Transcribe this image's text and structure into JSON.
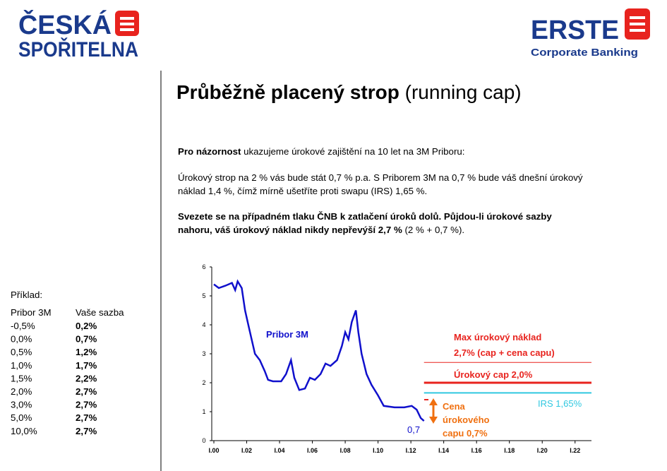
{
  "logos": {
    "left": [
      "ČESKÁ",
      "SPOŘITELNA"
    ],
    "right": {
      "name": "ERSTE",
      "subtitle": "Corporate Banking"
    }
  },
  "title": {
    "bold": "Průběžně placený strop",
    "rest": " (running cap)"
  },
  "text": {
    "p1_bold": "Pro názornost",
    "p1_rest": " ukazujeme úrokové zajištění na 10 let na 3M Priboru:",
    "p2_line1": "Úrokový strop na 2 % vás bude stát 0,7 % p.a. S Priborem 3M na 0,7 % bude váš dnešní úrokový",
    "p2_line2": "náklad 1,4 %, čímž mírně ušetříte proti swapu (IRS) 1,65 %.",
    "p3_line1": "Svezete se na případném tlaku ČNB k zatlačení úroků dolů. Půjdou-li úrokové sazby",
    "p3_line2_bold": "nahoru, váš úrokový náklad nikdy nepřevýší 2,7 %",
    "p3_line2_rest": " (2 % + 0,7 %)."
  },
  "example": {
    "label": "Příklad:",
    "header": [
      "Pribor 3M",
      "Vaše sazba"
    ],
    "rows": [
      [
        "-0,5%",
        "0,2%"
      ],
      [
        "0,0%",
        "0,7%"
      ],
      [
        "0,5%",
        "1,2%"
      ],
      [
        "1,0%",
        "1,7%"
      ],
      [
        "1,5%",
        "2,2%"
      ],
      [
        "2,0%",
        "2,7%"
      ],
      [
        "3,0%",
        "2,7%"
      ],
      [
        "5,0%",
        "2,7%"
      ],
      [
        "10,0%",
        "2,7%"
      ]
    ]
  },
  "chart_data": {
    "type": "line",
    "x": [
      2000,
      2000.3,
      2000.7,
      2001.1,
      2001.3,
      2001.45,
      2001.7,
      2001.9,
      2002.1,
      2002.3,
      2002.5,
      2002.8,
      2003.1,
      2003.3,
      2003.6,
      2004.1,
      2004.4,
      2004.7,
      2004.9,
      2005.2,
      2005.55,
      2005.85,
      2006.15,
      2006.5,
      2006.8,
      2007.1,
      2007.5,
      2007.8,
      2008,
      2008.2,
      2008.4,
      2008.65,
      2008.8,
      2009,
      2009.3,
      2009.6,
      2010,
      2010.35,
      2011,
      2011.6,
      2012.05,
      2012.35,
      2012.6,
      2012.8
    ],
    "series": [
      {
        "name": "Pribor 3M",
        "color": "#1010cc",
        "values": [
          5.4,
          5.27,
          5.35,
          5.45,
          5.2,
          5.5,
          5.27,
          4.5,
          4.0,
          3.5,
          3.0,
          2.78,
          2.4,
          2.1,
          2.05,
          2.05,
          2.3,
          2.78,
          2.17,
          1.75,
          1.8,
          2.17,
          2.1,
          2.3,
          2.66,
          2.58,
          2.78,
          3.27,
          3.75,
          3.5,
          4.1,
          4.5,
          3.75,
          3.0,
          2.3,
          1.93,
          1.56,
          1.2,
          1.15,
          1.15,
          1.2,
          1.07,
          0.78,
          0.68
        ]
      }
    ],
    "xlim": [
      2000,
      2023
    ],
    "ylim": [
      0,
      6
    ],
    "yticks": [
      0,
      1,
      2,
      3,
      4,
      5,
      6
    ],
    "xticks": [
      {
        "value": 2000,
        "label": "I.00"
      },
      {
        "value": 2002,
        "label": "I.02"
      },
      {
        "value": 2004,
        "label": "I.04"
      },
      {
        "value": 2006,
        "label": "I.06"
      },
      {
        "value": 2008,
        "label": "I.08"
      },
      {
        "value": 2010,
        "label": "I.10"
      },
      {
        "value": 2012,
        "label": "I.12"
      },
      {
        "value": 2014,
        "label": "I.14"
      },
      {
        "value": 2016,
        "label": "I.16"
      },
      {
        "value": 2018,
        "label": "I.18"
      },
      {
        "value": 2020,
        "label": "I.20"
      },
      {
        "value": 2022,
        "label": "I.22"
      }
    ],
    "reference_lines": [
      {
        "value": 2.7,
        "from": 2012.8,
        "color": "#e8231e",
        "line_width": 1,
        "labels": [
          "Max úrokový náklad",
          "2,7% (cap + cena capu)"
        ]
      },
      {
        "value": 2.0,
        "from": 2012.8,
        "color": "#e8231e",
        "line_width": 3,
        "labels": [
          "Úrokový cap 2,0%"
        ]
      },
      {
        "value": 1.65,
        "from": 2012.8,
        "color": "#30c8e0",
        "line_width": 2,
        "labels": [
          "IRS 1,65%"
        ]
      }
    ],
    "annotations": {
      "series_label": "Pribor 3M",
      "last_value": "0,7",
      "cap_cost": [
        "Cena",
        "úrokového",
        "capu 0,7%"
      ],
      "cap_cost_color": "#f07010"
    }
  }
}
